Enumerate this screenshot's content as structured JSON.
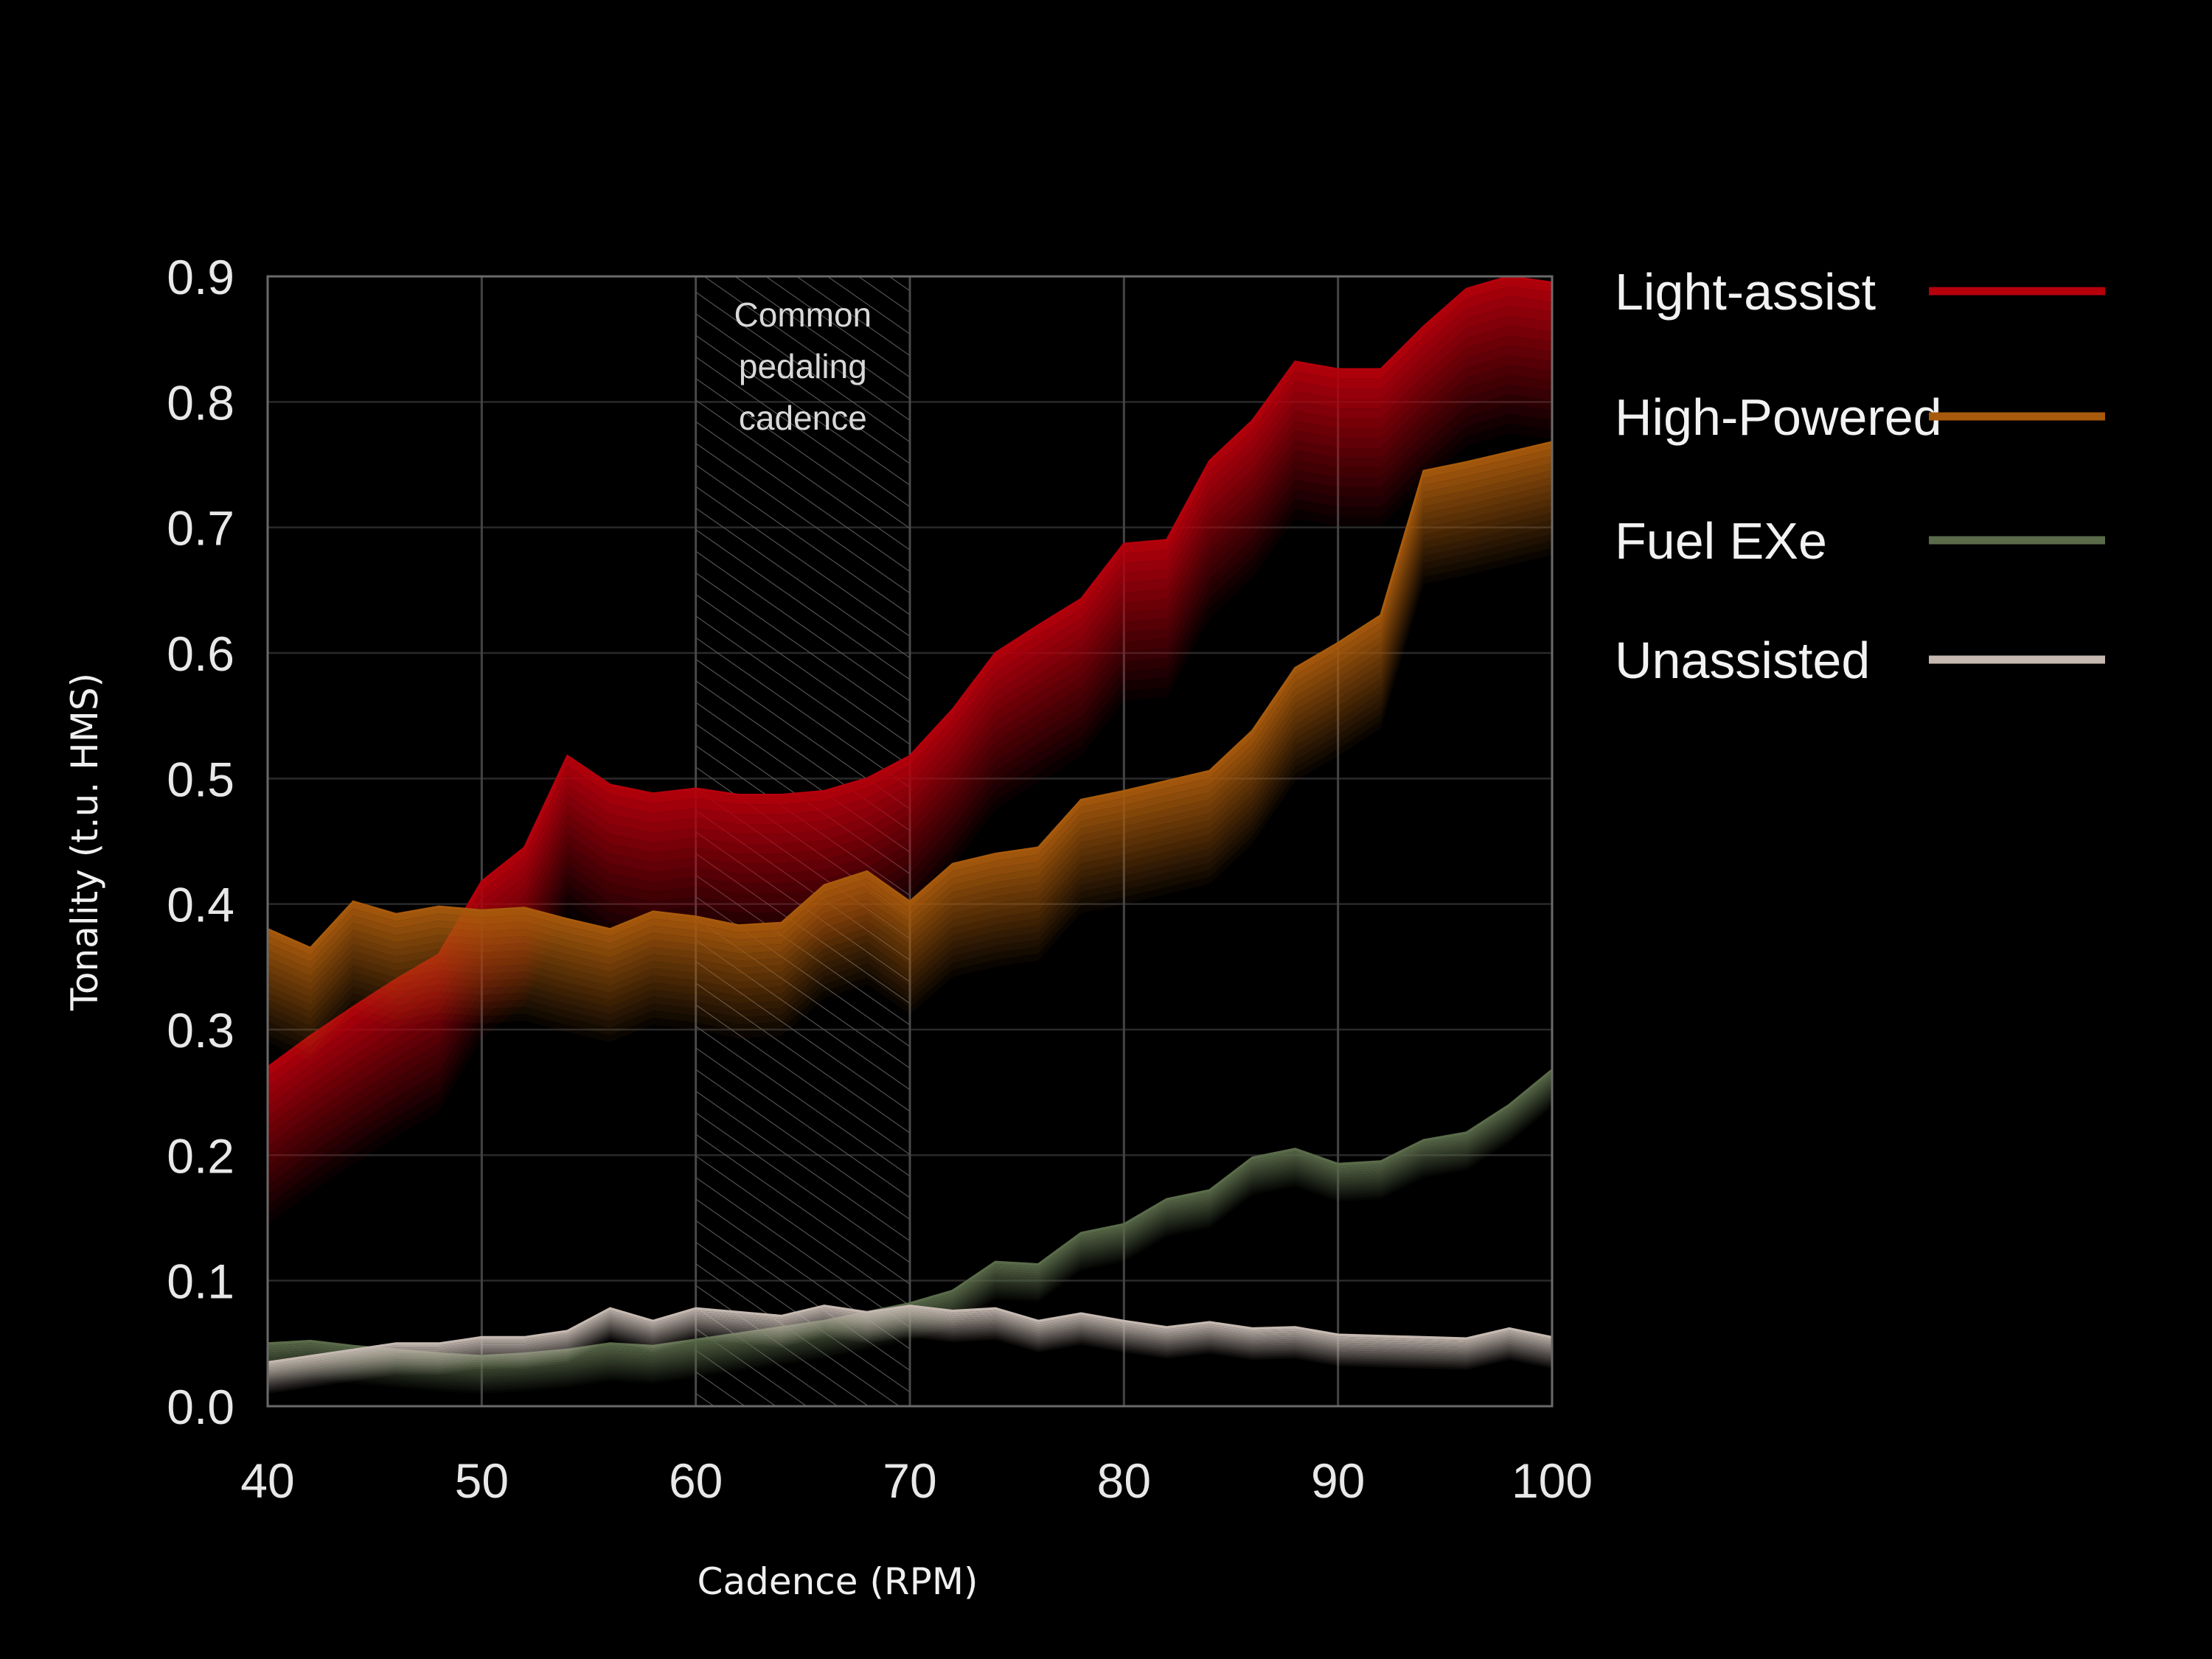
{
  "chart_data": {
    "type": "area",
    "xlabel": "Cadence (RPM)",
    "ylabel": "Tonality (t.u. HMS)",
    "xlim": [
      40,
      100
    ],
    "ylim": [
      0,
      0.9
    ],
    "x_ticks": [
      "40",
      "50",
      "60",
      "70",
      "80",
      "90",
      "100"
    ],
    "y_ticks": [
      "0.0",
      "0.1",
      "0.2",
      "0.3",
      "0.4",
      "0.5",
      "0.6",
      "0.7",
      "0.8",
      "0.9"
    ],
    "grid": true,
    "legend_position": "right",
    "annotation": {
      "lines": [
        "Common",
        "pedaling",
        "cadence"
      ],
      "x_range": [
        60,
        70
      ]
    },
    "x": [
      40,
      42,
      44,
      46,
      48,
      50,
      52,
      54,
      56,
      58,
      60,
      62,
      64,
      66,
      68,
      70,
      72,
      74,
      76,
      78,
      80,
      82,
      84,
      86,
      88,
      90,
      92,
      94,
      96,
      98,
      100
    ],
    "series": [
      {
        "name": "Light-assist",
        "color": "#b5000c",
        "values": [
          0.27,
          0.295,
          0.318,
          0.34,
          0.36,
          0.418,
          0.445,
          0.518,
          0.495,
          0.488,
          0.492,
          0.487,
          0.487,
          0.49,
          0.5,
          0.518,
          0.555,
          0.6,
          0.622,
          0.643,
          0.687,
          0.69,
          0.753,
          0.785,
          0.832,
          0.826,
          0.826,
          0.86,
          0.89,
          0.9,
          0.895
        ]
      },
      {
        "name": "High-Powered",
        "color": "#a85a0c",
        "values": [
          0.38,
          0.365,
          0.402,
          0.392,
          0.398,
          0.395,
          0.397,
          0.388,
          0.38,
          0.394,
          0.39,
          0.383,
          0.385,
          0.415,
          0.426,
          0.402,
          0.432,
          0.44,
          0.445,
          0.483,
          0.49,
          0.498,
          0.506,
          0.538,
          0.588,
          0.608,
          0.63,
          0.745,
          0.752,
          0.76,
          0.768
        ]
      },
      {
        "name": "Fuel EXe",
        "color": "#5a6b4a",
        "values": [
          0.05,
          0.052,
          0.048,
          0.045,
          0.042,
          0.04,
          0.042,
          0.045,
          0.05,
          0.048,
          0.053,
          0.058,
          0.063,
          0.068,
          0.075,
          0.082,
          0.092,
          0.115,
          0.113,
          0.138,
          0.145,
          0.165,
          0.172,
          0.198,
          0.205,
          0.193,
          0.195,
          0.212,
          0.218,
          0.24,
          0.268
        ]
      },
      {
        "name": "Unassisted",
        "color": "#c4b8b0",
        "values": [
          0.035,
          0.04,
          0.045,
          0.05,
          0.05,
          0.055,
          0.055,
          0.06,
          0.078,
          0.068,
          0.078,
          0.075,
          0.072,
          0.08,
          0.075,
          0.08,
          0.076,
          0.078,
          0.068,
          0.074,
          0.068,
          0.063,
          0.067,
          0.062,
          0.063,
          0.057,
          0.056,
          0.055,
          0.054,
          0.062,
          0.055
        ]
      }
    ]
  }
}
